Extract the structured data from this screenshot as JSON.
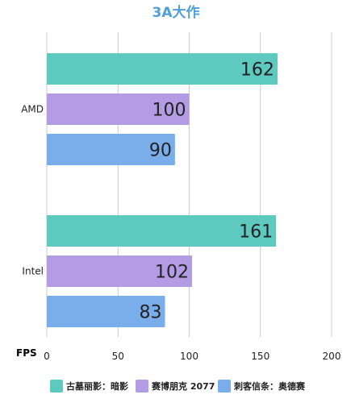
{
  "chart_data": {
    "type": "bar",
    "orientation": "horizontal",
    "title": "3A大作",
    "xlabel": "FPS",
    "categories": [
      "AMD",
      "Intel"
    ],
    "series": [
      {
        "name": "古墓丽影：暗影",
        "values": [
          162,
          161
        ]
      },
      {
        "name": "赛博朋克 2077",
        "values": [
          100,
          102
        ]
      },
      {
        "name": "刺客信条：奥德赛",
        "values": [
          90,
          83
        ]
      }
    ],
    "xlim": [
      0,
      200
    ],
    "xticks": [
      0,
      50,
      100,
      150,
      200
    ],
    "grid": "vertical",
    "legend": "bottom"
  },
  "colors": {
    "title": "#4f9fd8",
    "series": [
      "#5ec9bf",
      "#b39ce4",
      "#7aaeeb"
    ],
    "grid": "#cccccc",
    "text": "#222222"
  }
}
